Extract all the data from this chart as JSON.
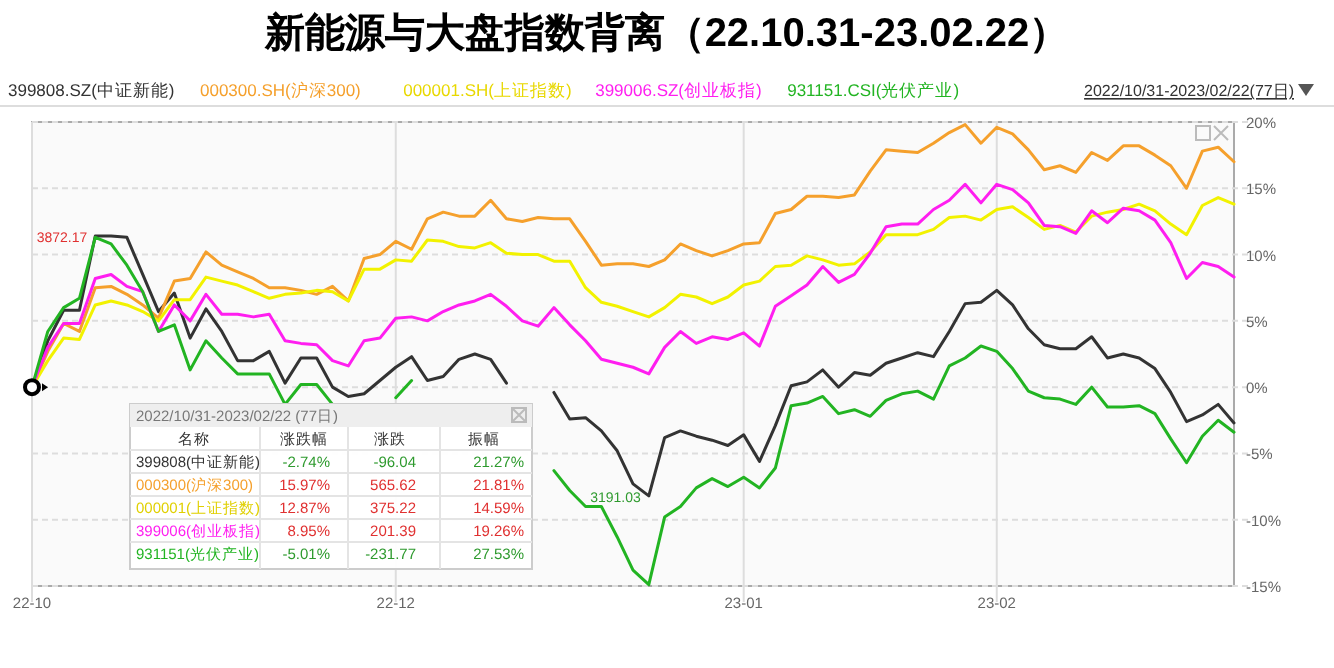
{
  "chart_data": {
    "type": "line",
    "title": "新能源与大盘指数背离（22.10.31-23.02.22）",
    "categories": [
      "22-10",
      null,
      null,
      null,
      null,
      null,
      null,
      null,
      null,
      null,
      null,
      null,
      null,
      null,
      null,
      null,
      null,
      null,
      null,
      null,
      null,
      null,
      null,
      "22-12",
      null,
      null,
      null,
      null,
      null,
      null,
      null,
      null,
      null,
      null,
      null,
      null,
      null,
      null,
      null,
      null,
      null,
      null,
      null,
      null,
      null,
      "23-01",
      null,
      null,
      null,
      null,
      null,
      null,
      null,
      null,
      null,
      null,
      null,
      null,
      null,
      null,
      null,
      "23-02",
      null,
      null,
      null,
      null,
      null,
      null,
      null,
      null,
      null,
      null,
      null,
      null,
      null,
      null,
      null
    ],
    "series": [
      {
        "name": "399808.SZ(中证新能)",
        "color": "#333333",
        "values": [
          0,
          3.5,
          5.8,
          5.8,
          11.4,
          11.4,
          11.3,
          8.5,
          5.7,
          7.1,
          3.7,
          5.9,
          4.2,
          2.0,
          2.0,
          2.7,
          0.3,
          2.2,
          2.2,
          0,
          -0.7,
          -0.5,
          0.5,
          1.5,
          2.3,
          0.5,
          0.8,
          2.1,
          2.5,
          2.1,
          0.3,
          null,
          null,
          -0.4,
          -2.4,
          -2.3,
          -3.3,
          -4.8,
          -7.3,
          -8.2,
          -3.8,
          -3.3,
          -3.7,
          -4.0,
          -4.4,
          -3.6,
          -5.6,
          -2.9,
          0.1,
          0.4,
          1.3,
          0,
          1.1,
          0.9,
          1.8,
          2.2,
          2.6,
          2.3,
          4.2,
          6.3,
          6.4,
          7.3,
          6.2,
          4.4,
          3.2,
          2.9,
          2.9,
          3.8,
          2.2,
          2.5,
          2.2,
          1.4,
          -0.4,
          -2.6,
          -2.1,
          -1.3,
          -2.7
        ]
      },
      {
        "name": "000300.SH(沪深300)",
        "color": "#f5a02c",
        "values": [
          0,
          2.7,
          4.8,
          4.2,
          7.5,
          7.6,
          7.0,
          6.2,
          5.2,
          8.0,
          8.2,
          10.2,
          9.2,
          8.7,
          8.2,
          7.5,
          7.5,
          7.3,
          7.0,
          7.6,
          6.5,
          9.7,
          10.0,
          11.0,
          10.4,
          12.7,
          13.2,
          12.9,
          12.9,
          14.1,
          12.7,
          12.5,
          12.8,
          12.7,
          12.7,
          11.0,
          9.2,
          9.3,
          9.3,
          9.1,
          9.6,
          10.8,
          10.3,
          9.9,
          10.3,
          10.8,
          10.9,
          13.1,
          13.4,
          14.4,
          14.4,
          14.3,
          14.5,
          16.3,
          17.9,
          17.8,
          17.7,
          18.4,
          19.2,
          19.8,
          18.4,
          19.6,
          19.1,
          17.9,
          16.4,
          16.7,
          16.2,
          17.7,
          17.1,
          18.2,
          18.2,
          17.5,
          16.7,
          15.0,
          17.8,
          18.1,
          17.0
        ]
      },
      {
        "name": "000001.SH(上证指数)",
        "color": "#f2f200",
        "values": [
          0,
          2.0,
          3.7,
          3.6,
          6.2,
          6.5,
          6.2,
          5.7,
          5.0,
          6.6,
          6.6,
          8.3,
          8.0,
          7.7,
          7.2,
          6.7,
          7.0,
          7.1,
          7.3,
          7.2,
          6.5,
          8.9,
          8.9,
          9.6,
          9.5,
          11.1,
          11.0,
          10.6,
          10.5,
          10.9,
          10.1,
          10.0,
          10.0,
          9.5,
          9.5,
          7.5,
          6.4,
          6.1,
          5.7,
          5.3,
          6.0,
          7.0,
          6.8,
          6.3,
          6.8,
          7.7,
          8.0,
          9.1,
          9.2,
          9.9,
          9.6,
          9.2,
          9.3,
          10.2,
          11.5,
          11.5,
          11.5,
          11.9,
          12.8,
          12.9,
          12.6,
          13.4,
          13.6,
          12.8,
          11.9,
          12.2,
          11.7,
          12.9,
          13.2,
          13.4,
          13.8,
          13.3,
          12.3,
          11.5,
          13.7,
          14.3,
          13.8
        ]
      },
      {
        "name": "399006.SZ(创业板指)",
        "color": "#ff1ef0",
        "values": [
          0,
          3.0,
          4.8,
          4.8,
          8.2,
          8.5,
          7.6,
          7.2,
          4.2,
          6.2,
          5.0,
          7.0,
          5.5,
          5.5,
          5.3,
          5.5,
          3.5,
          3.3,
          3.2,
          2.0,
          1.6,
          3.5,
          3.7,
          5.2,
          5.3,
          5.0,
          5.7,
          6.2,
          6.5,
          7.0,
          6.1,
          5.0,
          4.6,
          6.0,
          4.7,
          3.5,
          2.1,
          1.8,
          1.5,
          1.0,
          3.0,
          4.2,
          3.3,
          3.8,
          3.6,
          4.1,
          3.1,
          6.1,
          6.9,
          7.7,
          9.1,
          7.9,
          8.5,
          10.1,
          12.1,
          12.3,
          12.3,
          13.4,
          14.1,
          15.3,
          13.9,
          15.3,
          14.9,
          13.9,
          12.2,
          12.1,
          11.6,
          13.3,
          12.4,
          13.5,
          13.3,
          12.6,
          10.9,
          8.2,
          9.4,
          9.1,
          8.3
        ]
      },
      {
        "name": "931151.CSI(光伏产业)",
        "color": "#22b422",
        "values": [
          0,
          4.2,
          6.0,
          6.7,
          11.3,
          10.8,
          9.2,
          7.2,
          4.2,
          4.7,
          1.3,
          3.5,
          2.2,
          1.0,
          1.0,
          1.0,
          -1.3,
          0.2,
          0.2,
          -1.3,
          null,
          null,
          null,
          -0.8,
          0.5,
          null,
          null,
          null,
          null,
          null,
          null,
          null,
          null,
          -6.3,
          -7.8,
          -9.0,
          -9.0,
          -11.3,
          -13.8,
          -14.9,
          -9.8,
          -9.0,
          -7.6,
          -6.9,
          -7.5,
          -6.8,
          -7.6,
          -6.1,
          -1.4,
          -1.2,
          -0.7,
          -2.0,
          -1.7,
          -2.2,
          -1.0,
          -0.5,
          -0.3,
          -0.9,
          1.6,
          2.2,
          3.1,
          2.7,
          1.4,
          -0.3,
          -0.8,
          -0.9,
          -1.3,
          0,
          -1.5,
          -1.5,
          -1.4,
          -2.0,
          -3.9,
          -5.7,
          -3.7,
          -2.5,
          -3.4
        ]
      }
    ],
    "ylim": [
      -15,
      20
    ],
    "yticks": [
      {
        "value": -15,
        "label": "-15%"
      },
      {
        "value": -10,
        "label": "-10%"
      },
      {
        "value": -5,
        "label": "-5%"
      },
      {
        "value": 0,
        "label": "0%"
      },
      {
        "value": 5,
        "label": "5%"
      },
      {
        "value": 10,
        "label": "10%"
      },
      {
        "value": 15,
        "label": "15%"
      },
      {
        "value": 20,
        "label": "20%"
      }
    ],
    "grid": true,
    "legend": "top left",
    "line_style": "solid",
    "annotations": [
      "2022/10/31-2023/02/22(77日)",
      "2022/10/31-2023/02/22 (77日)",
      "名称",
      "涨跌幅",
      "涨跌",
      "振幅",
      "399808(中证新能)",
      "-2.74%",
      "-96.04",
      "21.27%",
      "000300(沪深300)",
      "15.97%",
      "565.62",
      "21.81%",
      "000001(上证指数)",
      "12.87%",
      "375.22",
      "14.59%",
      "399006(创业板指)",
      "8.95%",
      "201.39",
      "19.26%",
      "931151(光伏产业)",
      "-5.01%",
      "-231.77",
      "27.53%",
      "3872.17",
      "3191.03"
    ]
  }
}
